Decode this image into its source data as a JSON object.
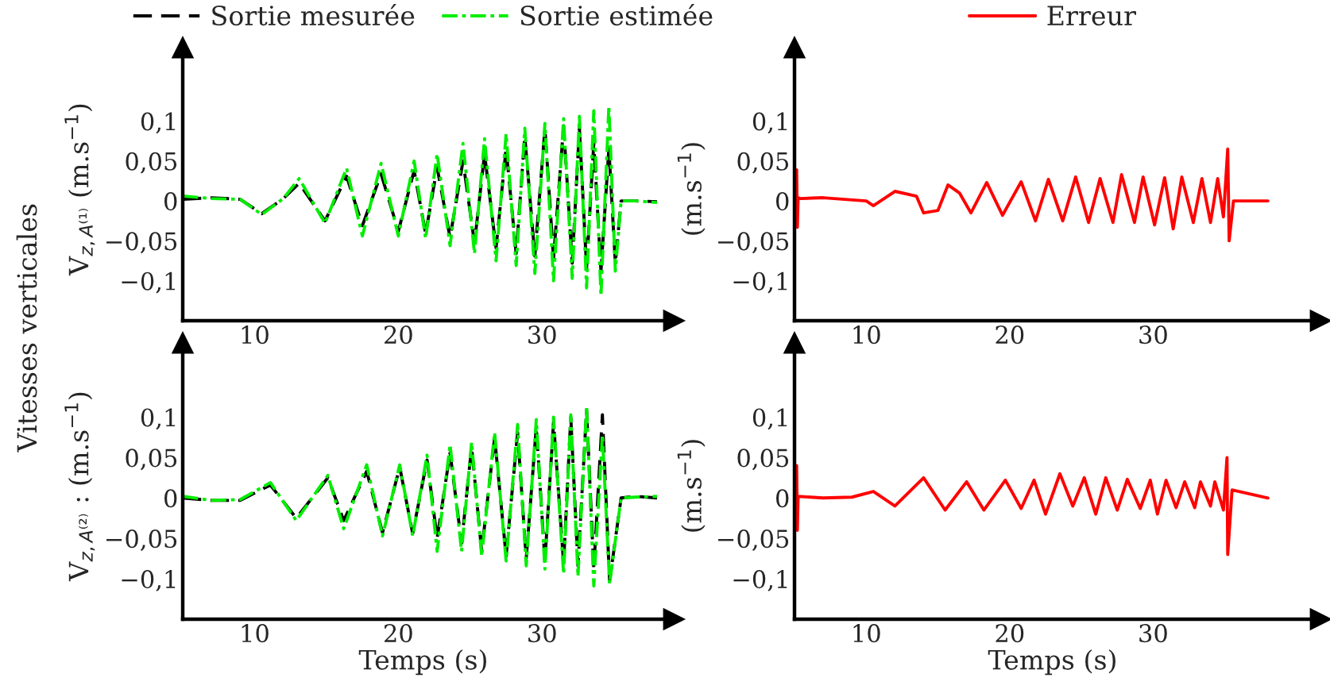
{
  "chart_data": [
    {
      "type": "line",
      "ylabel": "V$_{z,A⁽¹⁾}$ (m.s$^{−1}$)",
      "annotations": [
        "Vitesses verticales"
      ],
      "legend": "top",
      "xlim": [
        5,
        38.5
      ],
      "ylim": [
        -0.15,
        0.18
      ],
      "xticks": [
        10,
        20,
        30
      ],
      "yticks": [
        {
          "value": -0.1,
          "label": "−0,1"
        },
        {
          "value": -0.05,
          "label": "−0,05"
        },
        0,
        {
          "value": 0.05,
          "label": "0,05"
        },
        {
          "value": 0.1,
          "label": "0,1"
        }
      ],
      "series": [
        {
          "name": "Sortie mesurée",
          "color": "#000000",
          "line_style": "dashed",
          "x": [
            5,
            7,
            9,
            10.5,
            12,
            13.1,
            14.9,
            16.4,
            17.5,
            18.8,
            20,
            21.1,
            21.9,
            22.7,
            23.6,
            24.5,
            25.3,
            26,
            26.8,
            27.5,
            28.2,
            28.8,
            29.5,
            30.2,
            30.8,
            31.5,
            32.1,
            32.6,
            33.1,
            33.6,
            34.1,
            34.65,
            35.1,
            35.5,
            36.5,
            38
          ],
          "values": [
            0.002,
            0.004,
            0.002,
            -0.016,
            0.003,
            0.022,
            -0.025,
            0.031,
            -0.031,
            0.034,
            -0.038,
            0.038,
            -0.041,
            0.042,
            -0.046,
            0.05,
            -0.053,
            0.059,
            -0.059,
            0.066,
            -0.066,
            0.081,
            -0.069,
            0.091,
            -0.072,
            0.094,
            -0.078,
            0.091,
            -0.084,
            0.072,
            -0.088,
            0.066,
            -0.078,
            0,
            0,
            -0.001
          ]
        },
        {
          "name": "Sortie estimée",
          "color": "#00ee00",
          "line_style": "dashdot",
          "x": [
            5,
            7,
            9,
            10.5,
            12,
            13.1,
            14.9,
            16.4,
            17.5,
            18.8,
            20,
            21.1,
            21.9,
            22.7,
            23.6,
            24.5,
            25.3,
            26,
            26.8,
            27.5,
            28.2,
            28.8,
            29.5,
            30.2,
            30.8,
            31.5,
            32.1,
            32.6,
            33.1,
            33.6,
            34.1,
            34.65,
            35.1,
            35.5,
            36.5,
            38
          ],
          "values": [
            0.006,
            0.003,
            0.002,
            -0.017,
            0.003,
            0.028,
            -0.028,
            0.041,
            -0.044,
            0.047,
            -0.044,
            0.05,
            -0.047,
            0.059,
            -0.056,
            0.072,
            -0.066,
            0.078,
            -0.075,
            0.084,
            -0.081,
            0.091,
            -0.091,
            0.097,
            -0.1,
            0.103,
            -0.097,
            0.106,
            -0.109,
            0.113,
            -0.119,
            0.119,
            -0.088,
            0,
            0,
            -0.002
          ]
        }
      ]
    },
    {
      "type": "line",
      "ylabel": "(m.s$^{−1}$)",
      "legend": "top",
      "xlim": [
        5,
        41
      ],
      "ylim": [
        -0.15,
        0.18
      ],
      "xticks": [
        10,
        20,
        30
      ],
      "yticks": [
        {
          "value": -0.1,
          "label": "−0,1"
        },
        {
          "value": -0.05,
          "label": "−0,05"
        },
        0,
        {
          "value": 0.05,
          "label": "0,05"
        },
        {
          "value": 0.1,
          "label": "0,1"
        }
      ],
      "series": [
        {
          "name": "Erreur",
          "color": "#ff0000",
          "line_style": "solid",
          "x": [
            5.15,
            5.2,
            5.25,
            5.4,
            7,
            10,
            10.5,
            12,
            13.5,
            14,
            15,
            15.7,
            16.5,
            17.3,
            18.4,
            19.5,
            20.8,
            21.8,
            22.7,
            23.7,
            24.6,
            25.5,
            26.3,
            27.2,
            27.8,
            28.7,
            29.3,
            30.1,
            30.8,
            31.4,
            32,
            32.8,
            33.4,
            34,
            34.5,
            34.9,
            35.2,
            35.3,
            35.6,
            38
          ],
          "values": [
            0.039,
            -0.033,
            0.004,
            0.003,
            0.004,
            0.0,
            -0.006,
            0.012,
            0.006,
            -0.015,
            -0.012,
            0.02,
            0.01,
            -0.015,
            0.023,
            -0.018,
            0.024,
            -0.025,
            0.027,
            -0.025,
            0.03,
            -0.027,
            0.028,
            -0.027,
            0.033,
            -0.027,
            0.03,
            -0.03,
            0.029,
            -0.035,
            0.03,
            -0.027,
            0.028,
            -0.027,
            0.028,
            -0.02,
            0.065,
            -0.05,
            0,
            0
          ]
        }
      ]
    },
    {
      "type": "line",
      "ylabel": "V$_{z,A⁽²⁾}$ : (m.s$^{−1}$)",
      "xlabel": "Temps (s)",
      "xlim": [
        5,
        38.5
      ],
      "ylim": [
        -0.15,
        0.18
      ],
      "xticks": [
        10,
        20,
        30
      ],
      "yticks": [
        {
          "value": -0.1,
          "label": "−0,1"
        },
        {
          "value": -0.05,
          "label": "−0,05"
        },
        0,
        {
          "value": 0.05,
          "label": "0,05"
        },
        {
          "value": 0.1,
          "label": "0,1"
        }
      ],
      "series": [
        {
          "color": "#000000",
          "line_style": "dashed",
          "x": [
            5,
            7,
            9,
            11.1,
            12.9,
            15.1,
            16.2,
            17.8,
            18.9,
            20.1,
            21,
            22,
            22.7,
            23.6,
            24.4,
            25.1,
            25.8,
            26.7,
            27.5,
            28.3,
            28.9,
            29.6,
            30.2,
            30.8,
            31.5,
            32,
            32.5,
            33.1,
            33.6,
            34.2,
            34.7,
            35.5,
            36.5,
            38
          ],
          "values": [
            0,
            -0.003,
            -0.003,
            0.016,
            -0.025,
            0.025,
            -0.028,
            0.033,
            -0.043,
            0.038,
            -0.044,
            0.047,
            -0.05,
            0.056,
            -0.056,
            0.063,
            -0.066,
            0.075,
            -0.072,
            0.081,
            -0.075,
            0.088,
            -0.078,
            0.094,
            -0.081,
            0.1,
            -0.084,
            0.109,
            -0.088,
            0.103,
            -0.103,
            0,
            0.002,
            0
          ]
        },
        {
          "color": "#00ee00",
          "line_style": "dashdot",
          "x": [
            5,
            7,
            9,
            11.1,
            12.9,
            15.1,
            16.2,
            17.8,
            18.9,
            20.1,
            21,
            22,
            22.7,
            23.6,
            24.4,
            25.1,
            25.8,
            26.7,
            27.5,
            28.3,
            28.9,
            29.6,
            30.2,
            30.8,
            31.5,
            32,
            32.5,
            33.1,
            33.6,
            34.2,
            34.7,
            35.5,
            36.5,
            38
          ],
          "values": [
            0.002,
            -0.003,
            -0.002,
            0.019,
            -0.028,
            0.028,
            -0.038,
            0.041,
            -0.047,
            0.041,
            -0.047,
            0.053,
            -0.066,
            0.066,
            -0.066,
            0.069,
            -0.072,
            0.081,
            -0.078,
            0.091,
            -0.084,
            0.097,
            -0.088,
            0.1,
            -0.094,
            0.103,
            -0.097,
            0.113,
            -0.109,
            0.078,
            -0.106,
            0,
            0.001,
            0.002
          ]
        }
      ]
    },
    {
      "type": "line",
      "ylabel": "(m.s$^{−1}$)",
      "xlabel": "Temps (s)",
      "xlim": [
        5,
        41
      ],
      "ylim": [
        -0.15,
        0.18
      ],
      "xticks": [
        10,
        20,
        30
      ],
      "yticks": [
        {
          "value": -0.1,
          "label": "−0,1"
        },
        {
          "value": -0.05,
          "label": "−0,05"
        },
        0,
        {
          "value": 0.05,
          "label": "0,05"
        },
        {
          "value": 0.1,
          "label": "0,1"
        }
      ],
      "series": [
        {
          "color": "#ff0000",
          "line_style": "solid",
          "x": [
            5.15,
            5.2,
            5.25,
            7,
            9,
            10.5,
            12,
            14,
            15.5,
            17,
            18.2,
            19.7,
            20.8,
            21.7,
            22.5,
            23.5,
            24.4,
            25.2,
            26,
            26.7,
            27.5,
            28.2,
            29.1,
            29.8,
            30.3,
            30.9,
            31.6,
            32.2,
            32.9,
            33.3,
            34,
            34.3,
            34.9,
            35.15,
            35.2,
            35.5,
            38
          ],
          "values": [
            0.04,
            -0.04,
            0.002,
            0.0,
            0.001,
            0.008,
            -0.01,
            0.025,
            -0.015,
            0.02,
            -0.015,
            0.022,
            -0.013,
            0.022,
            -0.02,
            0.03,
            -0.01,
            0.025,
            -0.02,
            0.025,
            -0.015,
            0.023,
            -0.013,
            0.022,
            -0.02,
            0.022,
            -0.012,
            0.02,
            -0.012,
            0.02,
            -0.01,
            0.02,
            -0.015,
            0.05,
            -0.07,
            0.01,
            0
          ]
        }
      ]
    }
  ]
}
